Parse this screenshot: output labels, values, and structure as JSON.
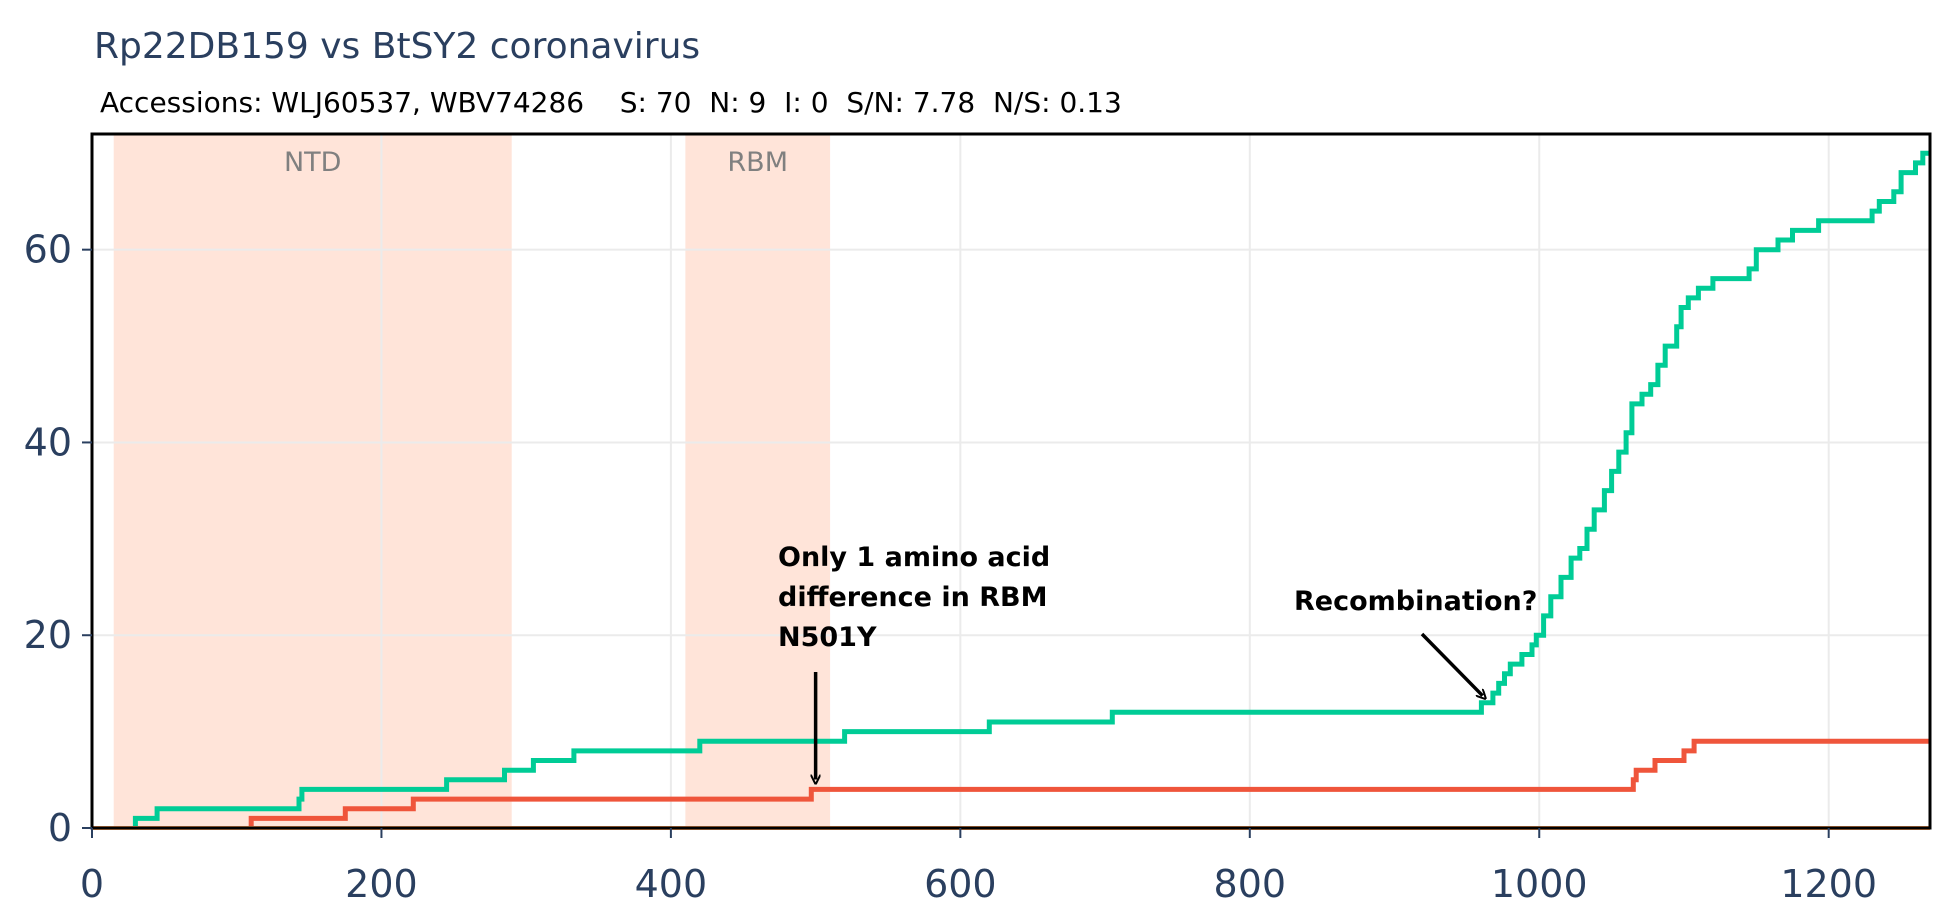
{
  "chart_data": {
    "type": "line",
    "title": "Rp22DB159 vs BtSY2 coronavirus",
    "subtitle": "Accessions: WLJ60537, WBV74286    S: 70  N: 9  I: 0  S/N: 7.78  N/S: 0.13",
    "xlim": [
      0,
      1270
    ],
    "ylim": [
      0,
      72
    ],
    "x_ticks": [
      0,
      200,
      400,
      600,
      800,
      1000,
      1200
    ],
    "y_ticks": [
      0,
      20,
      40,
      60
    ],
    "grid": true,
    "legend": "none",
    "regions": [
      {
        "label": "NTD",
        "start": 15,
        "end": 290,
        "color": "#ffe4d9"
      },
      {
        "label": "RBM",
        "start": 410,
        "end": 510,
        "color": "#ffe4d9"
      }
    ],
    "series": [
      {
        "color": "#00cc96",
        "points": [
          [
            30,
            0
          ],
          [
            30,
            1
          ],
          [
            45,
            1
          ],
          [
            45,
            2
          ],
          [
            143,
            2
          ],
          [
            143,
            3
          ],
          [
            145,
            3
          ],
          [
            145,
            4
          ],
          [
            245,
            4
          ],
          [
            245,
            5
          ],
          [
            285,
            5
          ],
          [
            285,
            6
          ],
          [
            305,
            6
          ],
          [
            305,
            7
          ],
          [
            333,
            7
          ],
          [
            333,
            8
          ],
          [
            420,
            8
          ],
          [
            420,
            9
          ],
          [
            520,
            9
          ],
          [
            520,
            10
          ],
          [
            620,
            10
          ],
          [
            620,
            11
          ],
          [
            705,
            11
          ],
          [
            705,
            12
          ],
          [
            960,
            12
          ],
          [
            960,
            13
          ],
          [
            968,
            13
          ],
          [
            968,
            14
          ],
          [
            972,
            14
          ],
          [
            972,
            15
          ],
          [
            976,
            15
          ],
          [
            976,
            16
          ],
          [
            980,
            16
          ],
          [
            980,
            17
          ],
          [
            988,
            17
          ],
          [
            988,
            18
          ],
          [
            995,
            18
          ],
          [
            995,
            19
          ],
          [
            998,
            19
          ],
          [
            998,
            20
          ],
          [
            1003,
            20
          ],
          [
            1003,
            22
          ],
          [
            1008,
            22
          ],
          [
            1008,
            24
          ],
          [
            1015,
            24
          ],
          [
            1015,
            26
          ],
          [
            1022,
            26
          ],
          [
            1022,
            28
          ],
          [
            1028,
            28
          ],
          [
            1028,
            29
          ],
          [
            1033,
            29
          ],
          [
            1033,
            31
          ],
          [
            1038,
            31
          ],
          [
            1038,
            33
          ],
          [
            1045,
            33
          ],
          [
            1045,
            35
          ],
          [
            1050,
            35
          ],
          [
            1050,
            37
          ],
          [
            1055,
            37
          ],
          [
            1055,
            39
          ],
          [
            1060,
            39
          ],
          [
            1060,
            41
          ],
          [
            1064,
            41
          ],
          [
            1064,
            44
          ],
          [
            1071,
            44
          ],
          [
            1071,
            45
          ],
          [
            1077,
            45
          ],
          [
            1077,
            46
          ],
          [
            1082,
            46
          ],
          [
            1082,
            48
          ],
          [
            1087,
            48
          ],
          [
            1087,
            50
          ],
          [
            1095,
            50
          ],
          [
            1095,
            52
          ],
          [
            1098,
            52
          ],
          [
            1098,
            54
          ],
          [
            1103,
            54
          ],
          [
            1103,
            55
          ],
          [
            1110,
            55
          ],
          [
            1110,
            56
          ],
          [
            1120,
            56
          ],
          [
            1120,
            57
          ],
          [
            1145,
            57
          ],
          [
            1145,
            58
          ],
          [
            1150,
            58
          ],
          [
            1150,
            60
          ],
          [
            1165,
            60
          ],
          [
            1165,
            61
          ],
          [
            1175,
            61
          ],
          [
            1175,
            62
          ],
          [
            1193,
            62
          ],
          [
            1193,
            63
          ],
          [
            1230,
            63
          ],
          [
            1230,
            64
          ],
          [
            1235,
            64
          ],
          [
            1235,
            65
          ],
          [
            1245,
            65
          ],
          [
            1245,
            66
          ],
          [
            1250,
            66
          ],
          [
            1250,
            68
          ],
          [
            1260,
            68
          ],
          [
            1260,
            69
          ],
          [
            1265,
            69
          ],
          [
            1265,
            70
          ],
          [
            1270,
            70
          ]
        ]
      },
      {
        "color": "#ef553b",
        "points": [
          [
            110,
            0
          ],
          [
            110,
            1
          ],
          [
            175,
            1
          ],
          [
            175,
            2
          ],
          [
            222,
            2
          ],
          [
            222,
            3
          ],
          [
            497,
            3
          ],
          [
            497,
            4
          ],
          [
            1065,
            4
          ],
          [
            1065,
            5
          ],
          [
            1067,
            5
          ],
          [
            1067,
            6
          ],
          [
            1080,
            6
          ],
          [
            1080,
            7
          ],
          [
            1100,
            7
          ],
          [
            1100,
            8
          ],
          [
            1107,
            8
          ],
          [
            1107,
            9
          ],
          [
            1270,
            9
          ]
        ]
      },
      {
        "color": "#ffa15a",
        "points": [
          [
            0,
            0
          ],
          [
            1270,
            0
          ]
        ]
      }
    ],
    "annotations": [
      {
        "lines": [
          "Only 1 amino acid",
          "difference in RBM",
          "N501Y"
        ],
        "arrow_to": [
          500,
          4
        ],
        "position": "above"
      },
      {
        "lines": [
          "Recombination?"
        ],
        "arrow_to": [
          965,
          13
        ],
        "position": "above-left"
      }
    ]
  }
}
